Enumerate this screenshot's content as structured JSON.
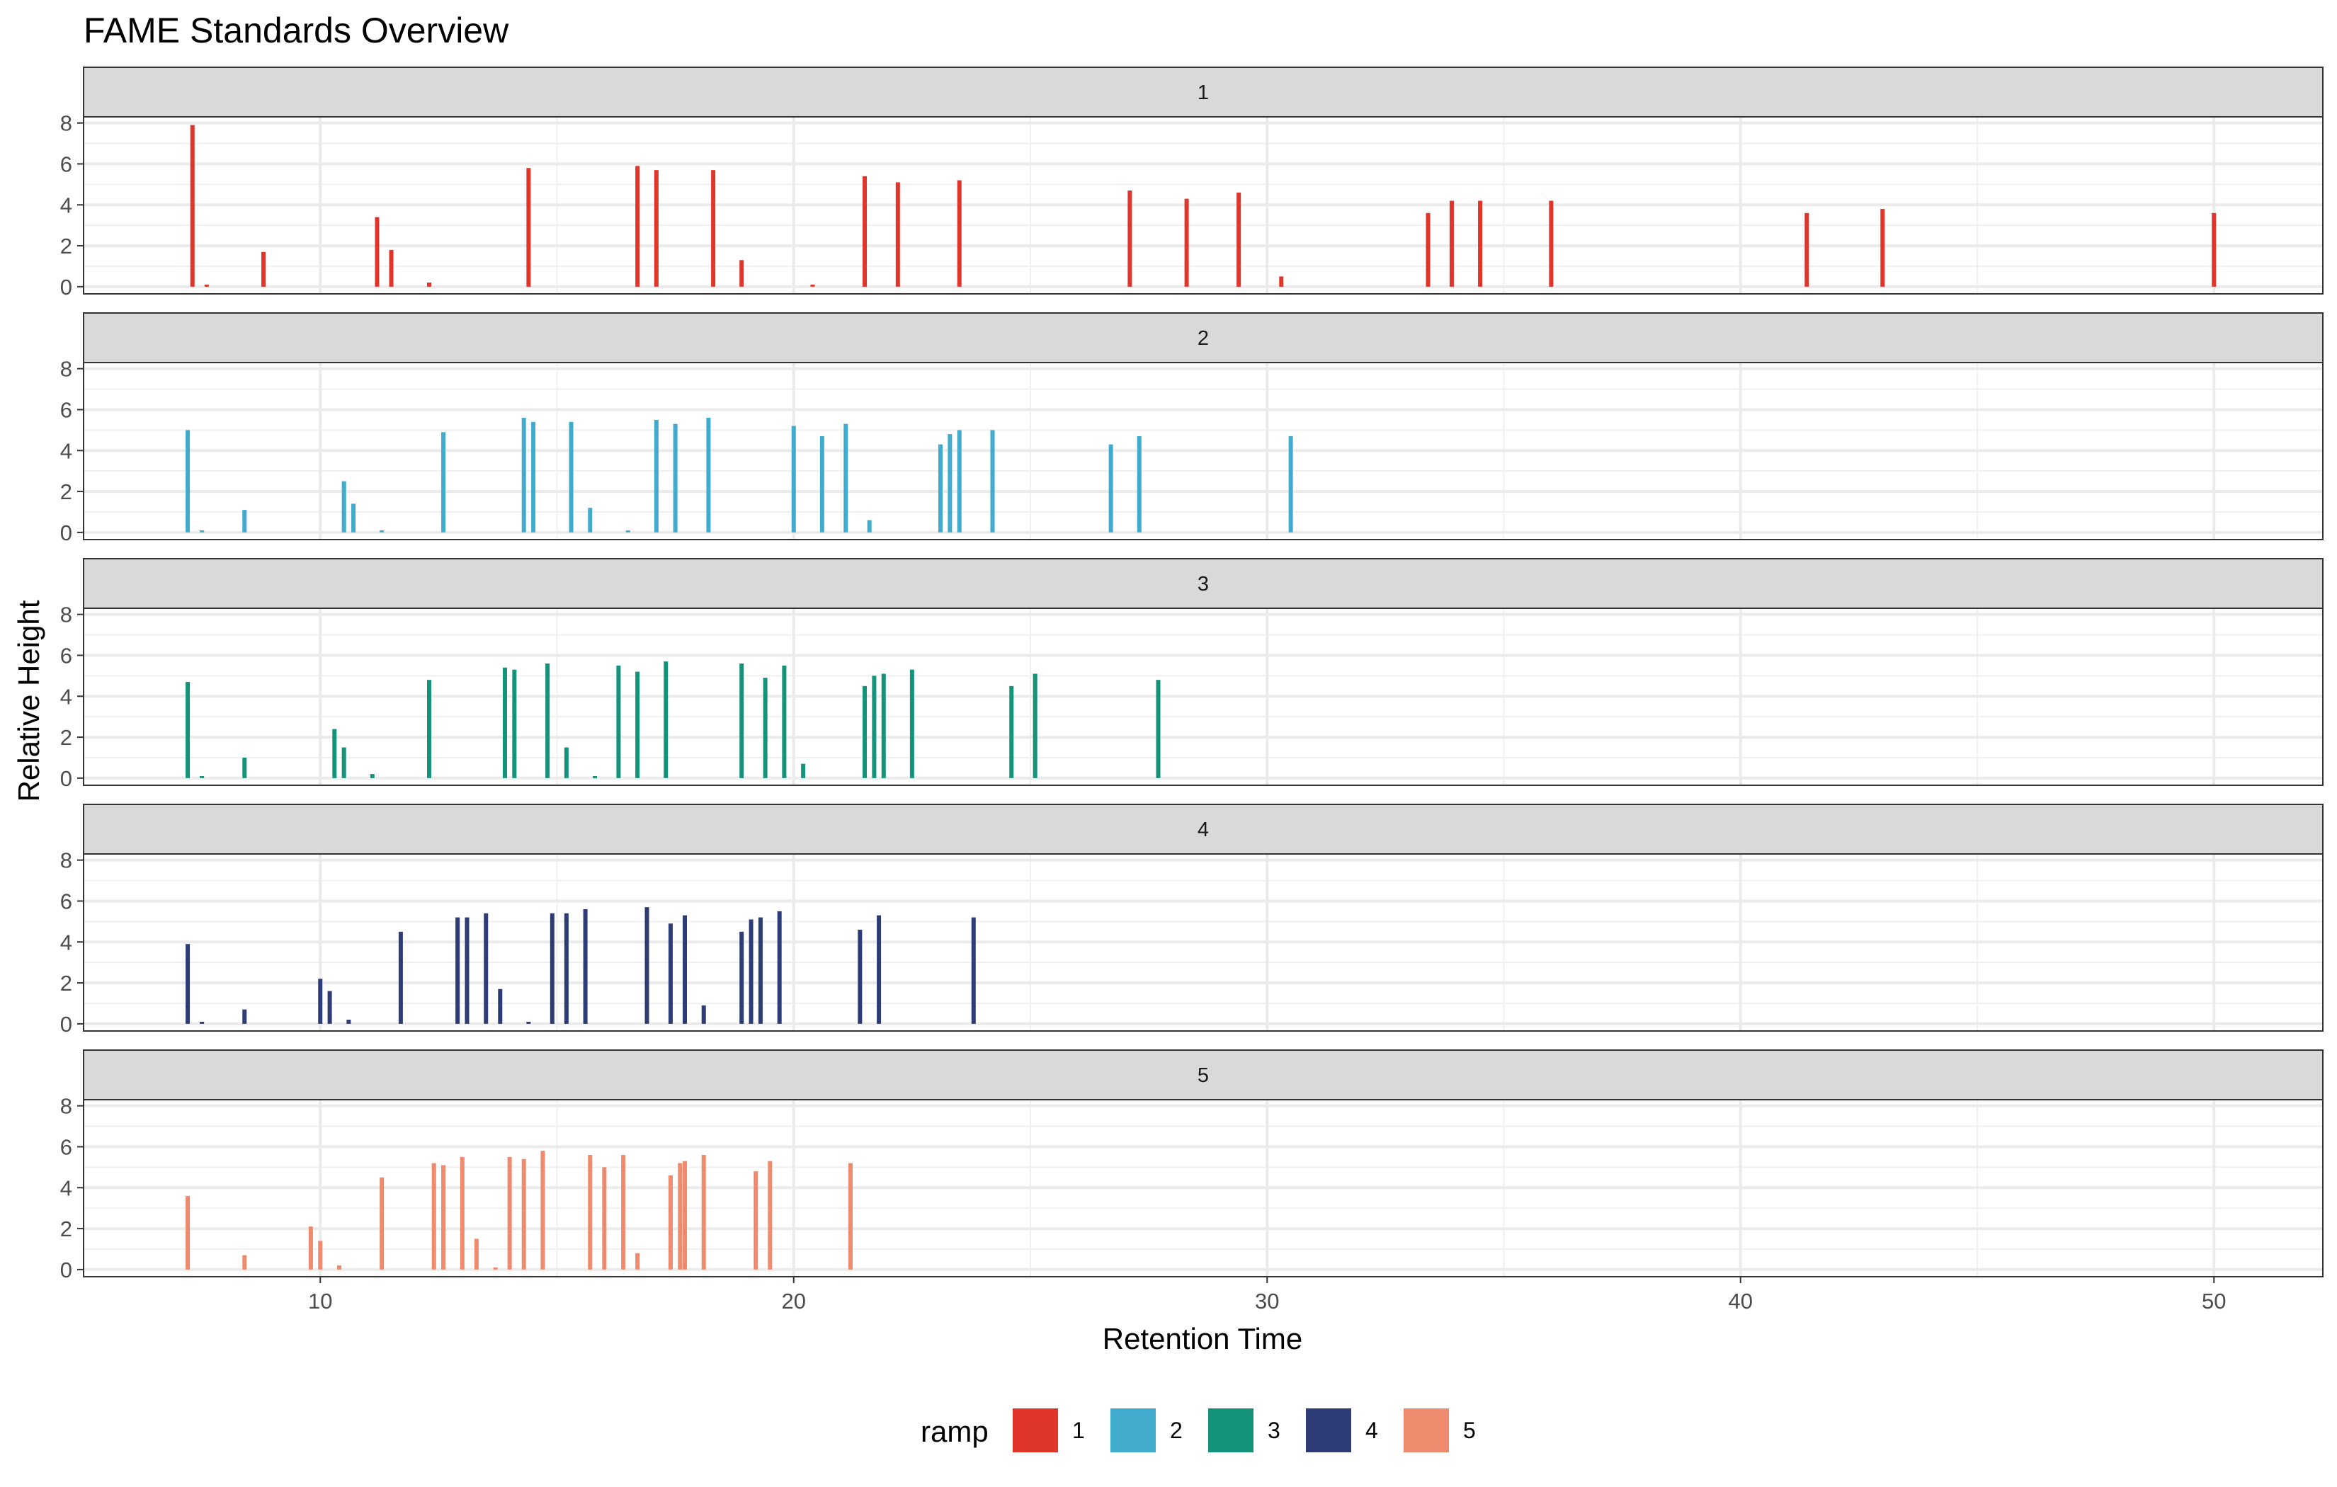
{
  "chart_data": {
    "type": "bar",
    "title": "FAME Standards Overview",
    "xlabel": "Retention Time",
    "ylabel": "Relative Height",
    "xlim": [
      5,
      52.3
    ],
    "ylim": [
      -0.35,
      8.3
    ],
    "x_ticks": [
      10,
      20,
      30,
      40,
      50
    ],
    "y_ticks": [
      0,
      2,
      4,
      6,
      8
    ],
    "grid": true,
    "legend": {
      "title": "ramp",
      "position": "bottom",
      "entries": [
        "1",
        "2",
        "3",
        "4",
        "5"
      ]
    },
    "facets": [
      {
        "strip": "1",
        "color": "#E0352B",
        "x": [
          7.3,
          7.6,
          8.8,
          11.2,
          11.5,
          12.3,
          14.4,
          16.7,
          17.1,
          18.3,
          18.9,
          20.4,
          21.5,
          22.2,
          23.5,
          27.1,
          28.3,
          29.4,
          30.3,
          33.4,
          33.9,
          34.5,
          36.0,
          41.4,
          43.0,
          50.0
        ],
        "y": [
          7.9,
          0.1,
          1.7,
          3.4,
          1.8,
          0.2,
          5.8,
          5.9,
          5.7,
          5.7,
          1.3,
          0.1,
          5.4,
          5.1,
          5.2,
          4.7,
          4.3,
          4.6,
          0.5,
          3.6,
          4.2,
          4.2,
          4.2,
          3.6,
          3.8,
          3.6
        ]
      },
      {
        "strip": "2",
        "color": "#41ABCE",
        "x": [
          7.2,
          7.5,
          8.4,
          10.5,
          10.7,
          11.3,
          12.6,
          14.3,
          14.5,
          15.3,
          15.7,
          16.5,
          17.1,
          17.5,
          18.2,
          20.0,
          20.6,
          21.1,
          21.6,
          23.1,
          23.3,
          23.5,
          24.2,
          26.7,
          27.3,
          30.5
        ],
        "y": [
          5.0,
          0.1,
          1.1,
          2.5,
          1.4,
          0.1,
          4.9,
          5.6,
          5.4,
          5.4,
          1.2,
          0.1,
          5.5,
          5.3,
          5.6,
          5.2,
          4.7,
          5.3,
          0.6,
          4.3,
          4.8,
          5.0,
          5.0,
          4.3,
          4.7,
          4.7
        ]
      },
      {
        "strip": "3",
        "color": "#14937A",
        "x": [
          7.2,
          7.5,
          8.4,
          10.3,
          10.5,
          11.1,
          12.3,
          13.9,
          14.1,
          14.8,
          15.2,
          15.8,
          16.3,
          16.7,
          17.3,
          18.9,
          19.4,
          19.8,
          20.2,
          21.5,
          21.7,
          21.9,
          22.5,
          24.6,
          25.1,
          27.7
        ],
        "y": [
          4.7,
          0.1,
          1.0,
          2.4,
          1.5,
          0.2,
          4.8,
          5.4,
          5.3,
          5.6,
          1.5,
          0.1,
          5.5,
          5.2,
          5.7,
          5.6,
          4.9,
          5.5,
          0.7,
          4.5,
          5.0,
          5.1,
          5.3,
          4.5,
          5.1,
          4.8
        ]
      },
      {
        "strip": "4",
        "color": "#2D3C77",
        "x": [
          7.2,
          7.5,
          8.4,
          10.0,
          10.2,
          10.6,
          11.7,
          12.9,
          13.1,
          13.5,
          13.8,
          14.4,
          14.9,
          15.2,
          15.6,
          16.9,
          17.4,
          17.7,
          18.1,
          18.9,
          19.1,
          19.3,
          19.7,
          21.4,
          21.8,
          23.8
        ],
        "y": [
          3.9,
          0.1,
          0.7,
          2.2,
          1.6,
          0.2,
          4.5,
          5.2,
          5.2,
          5.4,
          1.7,
          0.1,
          5.4,
          5.4,
          5.6,
          5.7,
          4.9,
          5.3,
          0.9,
          4.5,
          5.1,
          5.2,
          5.5,
          4.6,
          5.3,
          5.2
        ]
      },
      {
        "strip": "5",
        "color": "#EE8A6E",
        "x": [
          7.2,
          8.4,
          9.8,
          10.0,
          10.4,
          11.3,
          12.4,
          12.6,
          13.0,
          13.3,
          13.7,
          14.0,
          14.3,
          14.7,
          15.7,
          16.0,
          16.4,
          16.7,
          17.4,
          17.6,
          17.7,
          18.1,
          19.2,
          19.5,
          21.2
        ],
        "y": [
          3.6,
          0.7,
          2.1,
          1.4,
          0.2,
          4.5,
          5.2,
          5.1,
          5.5,
          1.5,
          0.1,
          5.5,
          5.4,
          5.8,
          5.6,
          5.0,
          5.6,
          0.8,
          4.6,
          5.2,
          5.3,
          5.6,
          4.8,
          5.3,
          5.2
        ]
      }
    ]
  }
}
